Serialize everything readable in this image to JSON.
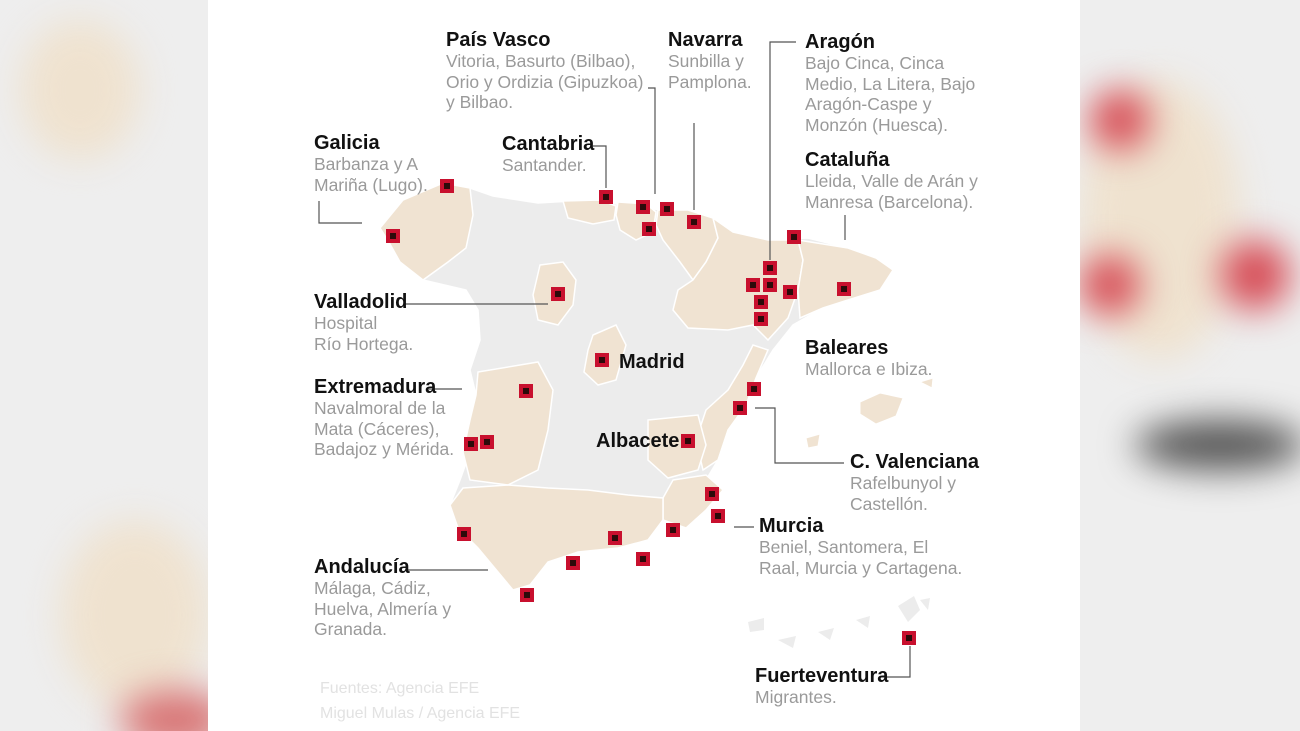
{
  "map": {
    "colors": {
      "region": "#ececec",
      "highlight": "#f0e3d2",
      "marker_outer": "#c8102e",
      "marker_inner": "#2b0a0a",
      "leader": "#555555",
      "description_text": "#9a9a9a"
    },
    "regions": [
      {
        "name": "País Vasco",
        "desc": "Vitoria, Basurto (Bilbao),\nOrio y Ordizia (Gipuzkoa)\ny Bilbao."
      },
      {
        "name": "Navarra",
        "desc": "Sunbilla y\nPamplona."
      },
      {
        "name": "Aragón",
        "desc": "Bajo Cinca, Cinca\nMedio, La Litera,  Bajo\nAragón-Caspe y\nMonzón (Huesca)."
      },
      {
        "name": "Galicia",
        "desc": "Barbanza y A\nMariña (Lugo)."
      },
      {
        "name": "Cantabria",
        "desc": "Santander."
      },
      {
        "name": "Cataluña",
        "desc": "Lleida, Valle de Arán y\nManresa (Barcelona)."
      },
      {
        "name": "Valladolid",
        "desc": "Hospital\nRío Hortega."
      },
      {
        "name": "Baleares",
        "desc": "Mallorca e Ibiza."
      },
      {
        "name": "Extremadura",
        "desc": "Navalmoral de la\nMata (Cáceres),\nBadajoz y Mérida."
      },
      {
        "name": "C. Valenciana",
        "desc": "Rafelbunyol y\nCastellón."
      },
      {
        "name": "Murcia",
        "desc": "Beniel, Santomera, El\nRaal, Murcia y Cartagena."
      },
      {
        "name": "Andalucía",
        "desc": "Málaga, Cádiz,\nHuelva, Almería y\nGranada."
      },
      {
        "name": "Fuerteventura",
        "desc": "Migrantes."
      }
    ],
    "cities": {
      "madrid": "Madrid",
      "albacete": "Albacete"
    },
    "sources": {
      "line1": "Fuentes: Agencia EFE",
      "line2": "Miguel Mulas / Agencia EFE"
    }
  }
}
